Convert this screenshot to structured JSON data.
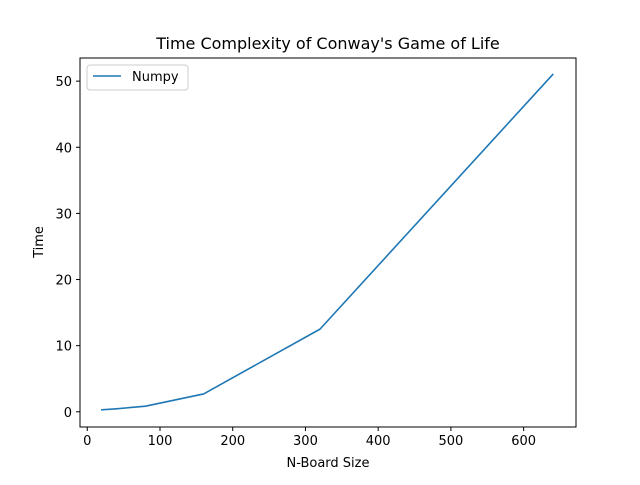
{
  "chart_data": {
    "type": "line",
    "title": "Time Complexity of Conway's Game of Life",
    "xlabel": "N-Board Size",
    "ylabel": "Time",
    "xlim": [
      -10,
      672
    ],
    "ylim": [
      -2.3,
      53.5
    ],
    "xticks": [
      0,
      100,
      200,
      300,
      400,
      500,
      600
    ],
    "yticks": [
      0,
      10,
      20,
      30,
      40,
      50
    ],
    "grid": false,
    "legend_position": "top-left",
    "series": [
      {
        "name": "Numpy",
        "color": "#1f77b4",
        "x": [
          20,
          40,
          80,
          160,
          320,
          640
        ],
        "y": [
          0.3,
          0.45,
          0.85,
          2.7,
          12.5,
          51.0
        ]
      }
    ]
  }
}
